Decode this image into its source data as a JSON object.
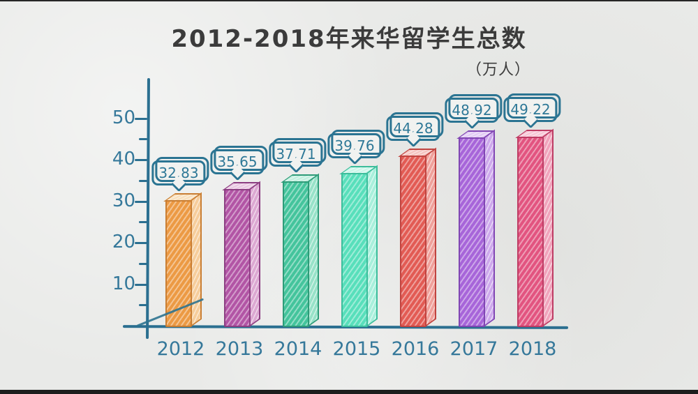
{
  "title": "2012-2018年来华留学生总数",
  "unit_label": "（万人）",
  "colors": {
    "axis": "#2b6f90",
    "tick_label": "#35789a",
    "bubble_border": "#2b7492",
    "bubble_text": "#2e7897",
    "title_text": "#3b3b3b",
    "paper": "#e9eae8"
  },
  "chart_data": {
    "type": "bar",
    "title": "2012-2018年来华留学生总数",
    "ylabel": "万人",
    "categories": [
      "2012",
      "2013",
      "2014",
      "2015",
      "2016",
      "2017",
      "2018"
    ],
    "values": [
      32.83,
      35.65,
      37.71,
      39.76,
      44.28,
      48.92,
      49.22
    ],
    "value_labels": [
      "32.83",
      "35.65",
      "37.71",
      "39.76",
      "44.28",
      "48.92",
      "49.22"
    ],
    "yticks": [
      10,
      20,
      30,
      40,
      50
    ],
    "minor_yticks": [
      5,
      15,
      25,
      35,
      45
    ],
    "ylim": [
      0,
      55
    ],
    "grid": false,
    "legend": null,
    "bar_style": "hand-drawn 3D hatched",
    "series_colors": [
      {
        "name": "2012",
        "front": "#ec9a44",
        "side": "#f6cd9b",
        "top": "#f8e0bd",
        "outline": "#c97e33"
      },
      {
        "name": "2013",
        "front": "#b255a5",
        "side": "#dca8d2",
        "top": "#e9c8e2",
        "outline": "#8c3f82"
      },
      {
        "name": "2014",
        "front": "#44c49c",
        "side": "#97e2c8",
        "top": "#c2efdf",
        "outline": "#2e9b78"
      },
      {
        "name": "2015",
        "front": "#58dfbb",
        "side": "#a8efdb",
        "top": "#ccf6ea",
        "outline": "#3cbd9b"
      },
      {
        "name": "2016",
        "front": "#e25b54",
        "side": "#efa09a",
        "top": "#f5c5c1",
        "outline": "#c04440"
      },
      {
        "name": "2017",
        "front": "#a765d9",
        "side": "#cda8ec",
        "top": "#e2ccf5",
        "outline": "#8046b3"
      },
      {
        "name": "2018",
        "front": "#e25480",
        "side": "#f0a3bb",
        "top": "#f7c7d6",
        "outline": "#be3c64"
      }
    ]
  }
}
